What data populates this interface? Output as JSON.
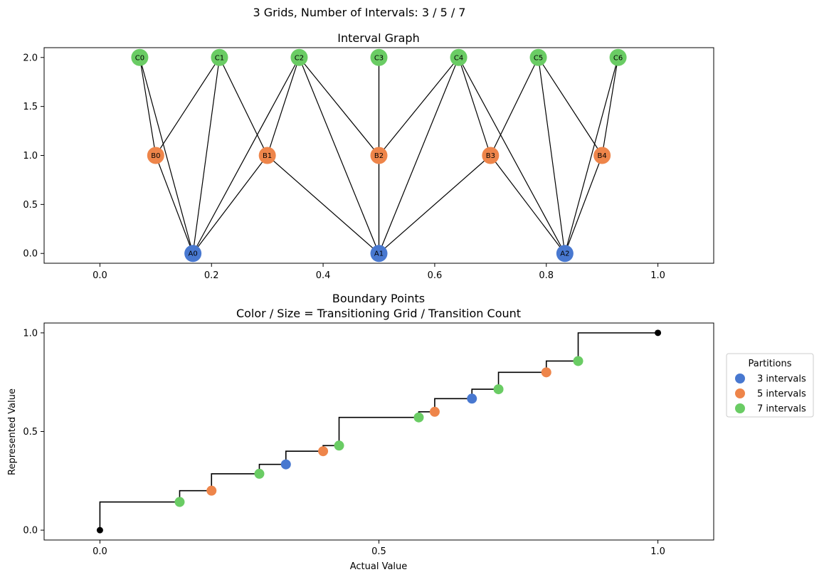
{
  "figure": {
    "title": "3 Grids, Number of Intervals: 3 / 5 / 7"
  },
  "colors": {
    "grid3": "#4878d0",
    "grid5": "#ee854a",
    "grid7": "#6acc64",
    "endpoint": "#000000",
    "edge": "#000000"
  },
  "chart_data": [
    {
      "type": "network",
      "title": "Interval Graph",
      "xlim": [
        -0.1,
        1.1
      ],
      "ylim": [
        -0.1,
        2.1
      ],
      "xticks": [
        "0.0",
        "0.2",
        "0.4",
        "0.6",
        "0.8",
        "1.0"
      ],
      "xtick_values": [
        0,
        0.2,
        0.4,
        0.6,
        0.8,
        1.0
      ],
      "yticks": [
        "0.0",
        "0.5",
        "1.0",
        "1.5",
        "2.0"
      ],
      "ytick_values": [
        0,
        0.5,
        1.0,
        1.5,
        2.0
      ],
      "nodes": [
        {
          "id": "A0",
          "x": 0.1667,
          "y": 0,
          "grid": "grid3"
        },
        {
          "id": "A1",
          "x": 0.5,
          "y": 0,
          "grid": "grid3"
        },
        {
          "id": "A2",
          "x": 0.8333,
          "y": 0,
          "grid": "grid3"
        },
        {
          "id": "B0",
          "x": 0.1,
          "y": 1,
          "grid": "grid5"
        },
        {
          "id": "B1",
          "x": 0.3,
          "y": 1,
          "grid": "grid5"
        },
        {
          "id": "B2",
          "x": 0.5,
          "y": 1,
          "grid": "grid5"
        },
        {
          "id": "B3",
          "x": 0.7,
          "y": 1,
          "grid": "grid5"
        },
        {
          "id": "B4",
          "x": 0.9,
          "y": 1,
          "grid": "grid5"
        },
        {
          "id": "C0",
          "x": 0.0714,
          "y": 2,
          "grid": "grid7"
        },
        {
          "id": "C1",
          "x": 0.2143,
          "y": 2,
          "grid": "grid7"
        },
        {
          "id": "C2",
          "x": 0.3571,
          "y": 2,
          "grid": "grid7"
        },
        {
          "id": "C3",
          "x": 0.5,
          "y": 2,
          "grid": "grid7"
        },
        {
          "id": "C4",
          "x": 0.6429,
          "y": 2,
          "grid": "grid7"
        },
        {
          "id": "C5",
          "x": 0.7857,
          "y": 2,
          "grid": "grid7"
        },
        {
          "id": "C6",
          "x": 0.9286,
          "y": 2,
          "grid": "grid7"
        }
      ],
      "edges": [
        [
          "C0",
          "B0"
        ],
        [
          "C0",
          "A0"
        ],
        [
          "C1",
          "B0"
        ],
        [
          "C1",
          "A0"
        ],
        [
          "C1",
          "B1"
        ],
        [
          "C2",
          "B1"
        ],
        [
          "C2",
          "A0"
        ],
        [
          "C2",
          "B2"
        ],
        [
          "C2",
          "A1"
        ],
        [
          "C3",
          "B2"
        ],
        [
          "C3",
          "A1"
        ],
        [
          "C4",
          "B2"
        ],
        [
          "C4",
          "A1"
        ],
        [
          "C4",
          "B3"
        ],
        [
          "C4",
          "A2"
        ],
        [
          "C5",
          "B3"
        ],
        [
          "C5",
          "B4"
        ],
        [
          "C5",
          "A2"
        ],
        [
          "C6",
          "B4"
        ],
        [
          "C6",
          "A2"
        ],
        [
          "B0",
          "A0"
        ],
        [
          "B1",
          "A0"
        ],
        [
          "B1",
          "A1"
        ],
        [
          "B2",
          "A1"
        ],
        [
          "B3",
          "A1"
        ],
        [
          "B3",
          "A2"
        ],
        [
          "B4",
          "A2"
        ]
      ]
    },
    {
      "type": "step+scatter",
      "title_lines": [
        "Boundary Points",
        "Color / Size = Transitioning Grid / Transition Count"
      ],
      "xlabel": "Actual Value",
      "ylabel": "Represented Value",
      "xlim": [
        -0.1,
        1.1
      ],
      "ylim": [
        -0.05,
        1.05
      ],
      "xticks": [
        "0.0",
        "0.5",
        "1.0"
      ],
      "xtick_values": [
        0,
        0.5,
        1.0
      ],
      "yticks": [
        "0.0",
        "0.5",
        "1.0"
      ],
      "ytick_values": [
        0,
        0.5,
        1.0
      ],
      "step_x": [
        0,
        0.1429,
        0.2,
        0.2857,
        0.3333,
        0.4,
        0.4286,
        0.5714,
        0.6,
        0.6667,
        0.7143,
        0.8,
        0.8571,
        1.0
      ],
      "step_y": [
        0,
        0.1429,
        0.2,
        0.2857,
        0.3333,
        0.4,
        0.4286,
        0.5714,
        0.6,
        0.6667,
        0.7143,
        0.8,
        0.8571,
        1.0
      ],
      "endpoints": [
        {
          "x": 0,
          "y": 0
        },
        {
          "x": 1.0,
          "y": 1.0
        }
      ],
      "points": [
        {
          "x": 0.1429,
          "y": 0.1429,
          "grid": "grid7"
        },
        {
          "x": 0.2,
          "y": 0.2,
          "grid": "grid5"
        },
        {
          "x": 0.2857,
          "y": 0.2857,
          "grid": "grid7"
        },
        {
          "x": 0.3333,
          "y": 0.3333,
          "grid": "grid3"
        },
        {
          "x": 0.4,
          "y": 0.4,
          "grid": "grid5"
        },
        {
          "x": 0.4286,
          "y": 0.4286,
          "grid": "grid7"
        },
        {
          "x": 0.5714,
          "y": 0.5714,
          "grid": "grid7"
        },
        {
          "x": 0.6,
          "y": 0.6,
          "grid": "grid5"
        },
        {
          "x": 0.6667,
          "y": 0.6667,
          "grid": "grid3"
        },
        {
          "x": 0.7143,
          "y": 0.7143,
          "grid": "grid7"
        },
        {
          "x": 0.8,
          "y": 0.8,
          "grid": "grid5"
        },
        {
          "x": 0.8571,
          "y": 0.8571,
          "grid": "grid7"
        }
      ],
      "legend": {
        "title": "Partitions",
        "placement": "right, outside plot",
        "entries": [
          {
            "label": "3 intervals",
            "grid": "grid3"
          },
          {
            "label": "5 intervals",
            "grid": "grid5"
          },
          {
            "label": "7 intervals",
            "grid": "grid7"
          }
        ]
      }
    }
  ]
}
